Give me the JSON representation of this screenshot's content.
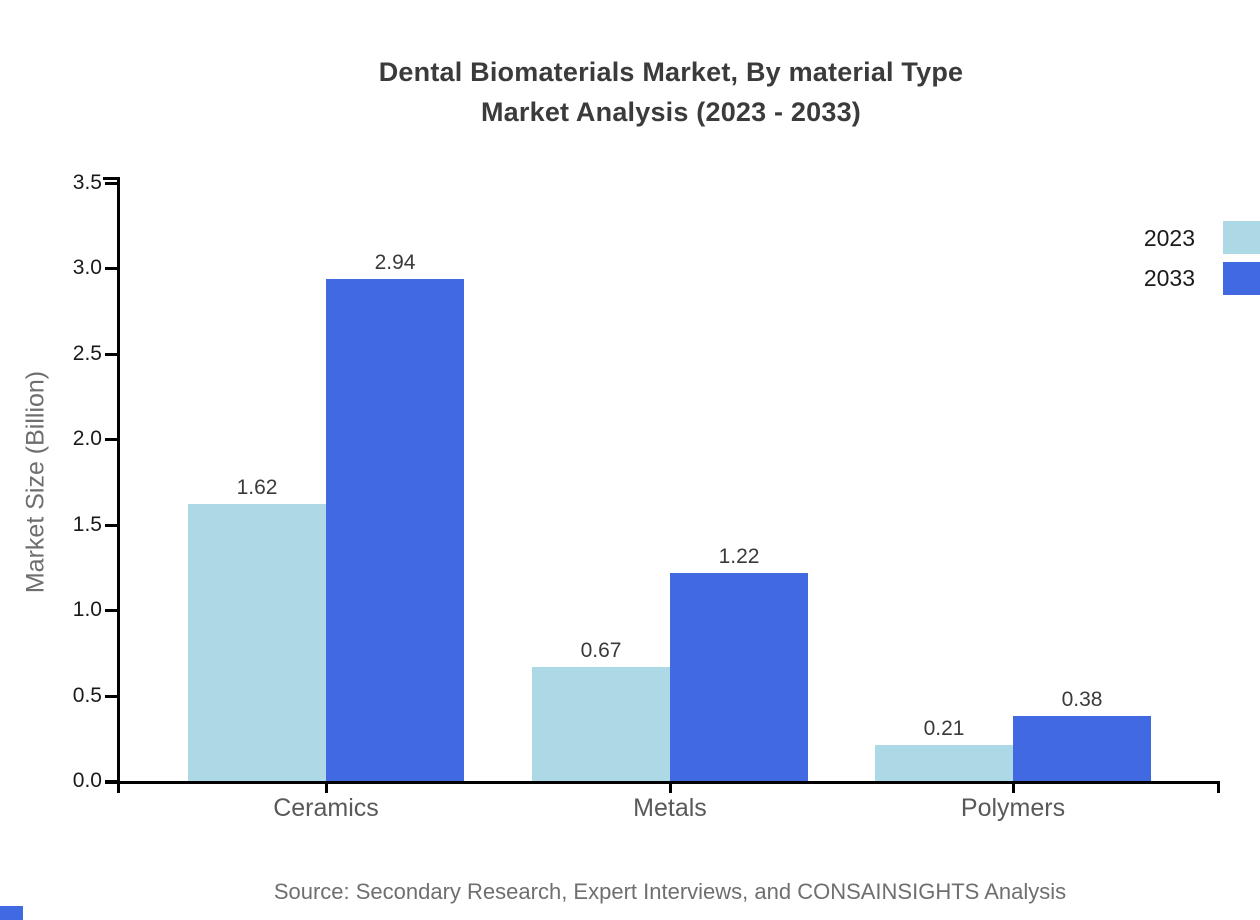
{
  "title": {
    "line1": "Dental Biomaterials Market, By material Type",
    "line2": "Market Analysis (2023 - 2033)"
  },
  "chart_data": {
    "type": "bar",
    "title": "Dental Biomaterials Market, By material Type Market Analysis (2023 - 2033)",
    "categories": [
      "Ceramics",
      "Metals",
      "Polymers"
    ],
    "series": [
      {
        "name": "2023",
        "color": "#ADD8E6",
        "values": [
          1.62,
          0.67,
          0.21
        ]
      },
      {
        "name": "2033",
        "color": "#4169E1",
        "values": [
          2.94,
          1.22,
          0.38
        ]
      }
    ],
    "xlabel": "",
    "ylabel": "Market Size (Billion)",
    "ylim": [
      0,
      3.5
    ],
    "yticks": [
      "0.0",
      "0.5",
      "1.0",
      "1.5",
      "2.0",
      "2.5",
      "3.0",
      "3.5"
    ],
    "grid": false,
    "value_labels": [
      "1.62",
      "2.94",
      "0.67",
      "1.22",
      "0.21",
      "0.38"
    ],
    "legend_position": "top-right"
  },
  "legend": {
    "items": [
      {
        "label": "2023",
        "color": "#ADD8E6"
      },
      {
        "label": "2033",
        "color": "#4169E1"
      }
    ]
  },
  "source": "Source: Secondary Research, Expert Interviews, and CONSAINSIGHTS Analysis",
  "colors": {
    "series_2023": "#ADD8E6",
    "series_2033": "#4169E1",
    "axis": "#000000",
    "title_text": "#3B3B3B",
    "tick_text": "#1A1A1A",
    "value_text": "#3A3A3A",
    "category_text": "#595959",
    "muted_text": "#6F6F6F",
    "brand_mark": "#4169E1"
  }
}
